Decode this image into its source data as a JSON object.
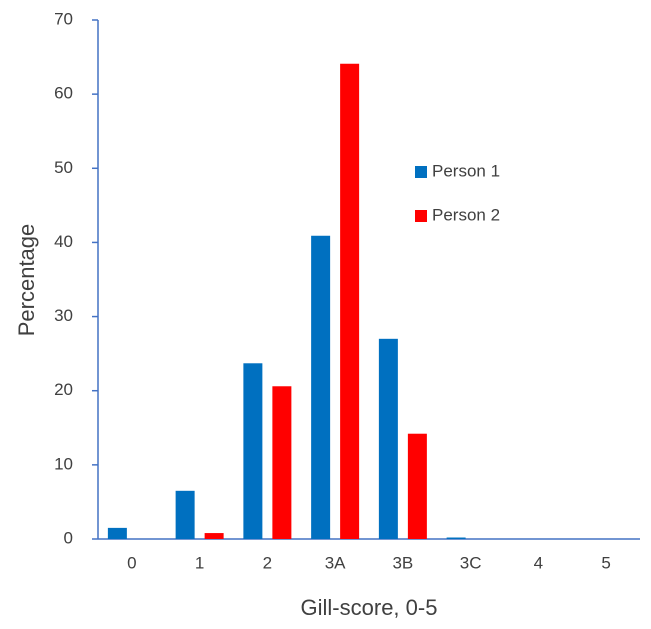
{
  "chart_data": {
    "type": "bar",
    "x_label": "Gill-score, 0-5",
    "y_label": "Percentage",
    "categories": [
      "0",
      "1",
      "2",
      "3A",
      "3B",
      "3C",
      "4",
      "5"
    ],
    "series": [
      {
        "name": "Person 1",
        "color": "#0070c0",
        "values": [
          1.5,
          6.5,
          23.7,
          40.9,
          27.0,
          0.2,
          0,
          0
        ]
      },
      {
        "name": "Person 2",
        "color": "#ff0000",
        "values": [
          0,
          0.8,
          20.6,
          64.1,
          14.2,
          0,
          0,
          0
        ]
      }
    ],
    "ylim": [
      0,
      70
    ],
    "yticks": [
      0,
      10,
      20,
      30,
      40,
      50,
      60,
      70
    ],
    "grid": false
  }
}
